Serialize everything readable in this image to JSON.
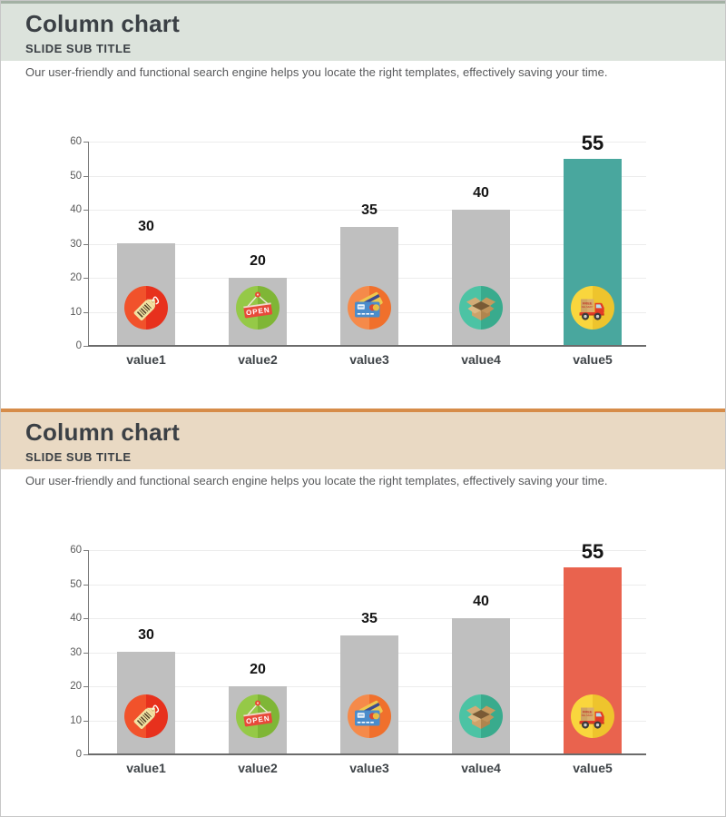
{
  "slides": [
    {
      "title": "Column chart",
      "subtitle": "SLIDE SUB TITLE",
      "description": "Our user-friendly and functional search engine helps you locate the right templates, effectively saving your time.",
      "accent_bar_color": "#a3b1a4",
      "header_bg": "#dce3dc",
      "highlight_color": "#49a79e"
    },
    {
      "title": "Column chart",
      "subtitle": "SLIDE SUB TITLE",
      "description": "Our user-friendly and functional search engine helps you locate the right templates, effectively saving your time.",
      "accent_bar_color": "#d68c49",
      "header_bg": "#e9d9c3",
      "highlight_color": "#e9634e"
    }
  ],
  "chart_data": [
    {
      "type": "bar",
      "title": "",
      "categories": [
        "value1",
        "value2",
        "value3",
        "value4",
        "value5"
      ],
      "values": [
        30,
        20,
        35,
        40,
        55
      ],
      "value_labels": [
        "30",
        "20",
        "35",
        "40",
        "55"
      ],
      "bar_colors": [
        "#bfbfbf",
        "#bfbfbf",
        "#bfbfbf",
        "#bfbfbf",
        "#49a79e"
      ],
      "emphasized_index": 4,
      "xlabel": "",
      "ylabel": "",
      "ylim": [
        0,
        60
      ],
      "yticks": [
        0,
        10,
        20,
        30,
        40,
        50,
        60
      ],
      "grid": true,
      "legend": false,
      "icons": [
        {
          "name": "price-tag",
          "label": "",
          "circle_left": "#f1522b",
          "circle_right": "#e7311d"
        },
        {
          "name": "open-sign",
          "label": "OPEN",
          "circle_left": "#95c947",
          "circle_right": "#7fb636"
        },
        {
          "name": "credit-cards",
          "label": "",
          "circle_left": "#f58a4a",
          "circle_right": "#f0702c"
        },
        {
          "name": "open-box",
          "label": "",
          "circle_left": "#4cc3a4",
          "circle_right": "#39ab8d"
        },
        {
          "name": "delivery-truck",
          "label": "FREE",
          "circle_left": "#f9d63d",
          "circle_right": "#eec42d"
        }
      ]
    },
    {
      "type": "bar",
      "title": "",
      "categories": [
        "value1",
        "value2",
        "value3",
        "value4",
        "value5"
      ],
      "values": [
        30,
        20,
        35,
        40,
        55
      ],
      "value_labels": [
        "30",
        "20",
        "35",
        "40",
        "55"
      ],
      "bar_colors": [
        "#bfbfbf",
        "#bfbfbf",
        "#bfbfbf",
        "#bfbfbf",
        "#e9634e"
      ],
      "emphasized_index": 4,
      "xlabel": "",
      "ylabel": "",
      "ylim": [
        0,
        60
      ],
      "yticks": [
        0,
        10,
        20,
        30,
        40,
        50,
        60
      ],
      "grid": true,
      "legend": false,
      "icons": [
        {
          "name": "price-tag",
          "label": "",
          "circle_left": "#f1522b",
          "circle_right": "#e7311d"
        },
        {
          "name": "open-sign",
          "label": "OPEN",
          "circle_left": "#95c947",
          "circle_right": "#7fb636"
        },
        {
          "name": "credit-cards",
          "label": "",
          "circle_left": "#f58a4a",
          "circle_right": "#f0702c"
        },
        {
          "name": "open-box",
          "label": "",
          "circle_left": "#4cc3a4",
          "circle_right": "#39ab8d"
        },
        {
          "name": "delivery-truck",
          "label": "FREE",
          "circle_left": "#f9d63d",
          "circle_right": "#eec42d"
        }
      ]
    }
  ]
}
